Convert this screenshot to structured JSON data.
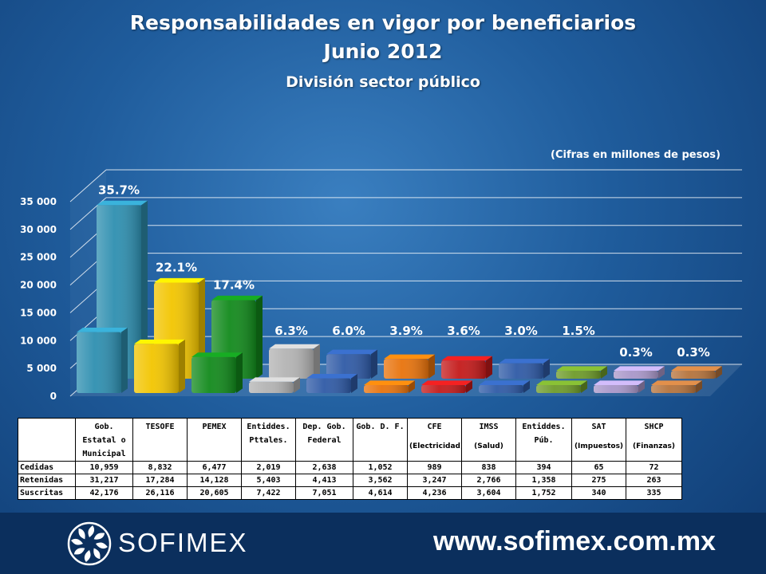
{
  "header": {
    "title": "Responsabilidades en vigor por beneficiarios",
    "subtitle": "Junio 2012",
    "section": "División sector público",
    "units": "(Cifras en millones de pesos)"
  },
  "chart_data": {
    "type": "bar",
    "ylim": [
      0,
      35000
    ],
    "yticks": [
      "0",
      "5 000",
      "10 000",
      "15 000",
      "20 000",
      "25 000",
      "30 000",
      "35 000"
    ],
    "categories": [
      "Gob. Estatal o Municipal",
      "TESOFE",
      "PEMEX",
      "Entiddes. Pttales.",
      "Dep. Gob. Federal",
      "Gob. D. F.",
      "CFE (Electricidad)",
      "IMSS (Salud)",
      "Entiddes. Púb.",
      "SAT (Impuestos)",
      "SHCP (Finanzas)"
    ],
    "series": [
      {
        "name": "Cedidas",
        "values": [
          10959,
          8832,
          6477,
          2019,
          2638,
          1052,
          989,
          838,
          394,
          65,
          72
        ]
      },
      {
        "name": "Retenidas",
        "values": [
          31217,
          17284,
          14128,
          5403,
          4413,
          3562,
          3247,
          2766,
          1358,
          275,
          263
        ]
      }
    ],
    "percent_labels": [
      "35.7%",
      "22.1%",
      "17.4%",
      "6.3%",
      "6.0%",
      "3.9%",
      "3.6%",
      "3.0%",
      "1.5%",
      "0.3%",
      "0.3%"
    ],
    "colors": [
      "#2e8fb0",
      "#f2c500",
      "#128a1c",
      "#b3b3b3",
      "#2f5aa6",
      "#e8730c",
      "#c41a1a",
      "#2f5aa6",
      "#6e9b2a",
      "#a997c9",
      "#b5733c"
    ],
    "grid": true
  },
  "table": {
    "headers": [
      {
        "label": "",
        "sub": ""
      },
      {
        "label": "Gob. Estatal o Municipal",
        "sub": ""
      },
      {
        "label": "TESOFE",
        "sub": ""
      },
      {
        "label": "PEMEX",
        "sub": ""
      },
      {
        "label": "Entiddes. Pttales.",
        "sub": ""
      },
      {
        "label": "Dep. Gob. Federal",
        "sub": ""
      },
      {
        "label": "Gob. D. F.",
        "sub": ""
      },
      {
        "label": "CFE",
        "sub": "(Electricidad)"
      },
      {
        "label": "IMSS",
        "sub": "(Salud)"
      },
      {
        "label": "Entiddes. Púb.",
        "sub": ""
      },
      {
        "label": "SAT",
        "sub": "(Impuestos)"
      },
      {
        "label": "SHCP",
        "sub": "(Finanzas)"
      }
    ],
    "rows": [
      {
        "label": "Cedidas",
        "values": [
          "10,959",
          "8,832",
          "6,477",
          "2,019",
          "2,638",
          "1,052",
          "989",
          "838",
          "394",
          "65",
          "72"
        ]
      },
      {
        "label": "Retenidas",
        "values": [
          "31,217",
          "17,284",
          "14,128",
          "5,403",
          "4,413",
          "3,562",
          "3,247",
          "2,766",
          "1,358",
          "275",
          "263"
        ]
      },
      {
        "label": "Suscritas",
        "values": [
          "42,176",
          "26,116",
          "20,605",
          "7,422",
          "7,051",
          "4,614",
          "4,236",
          "3,604",
          "1,752",
          "340",
          "335"
        ]
      }
    ]
  },
  "footer": {
    "brand": "SOFIMEX",
    "website": "www.sofimex.com.mx"
  }
}
